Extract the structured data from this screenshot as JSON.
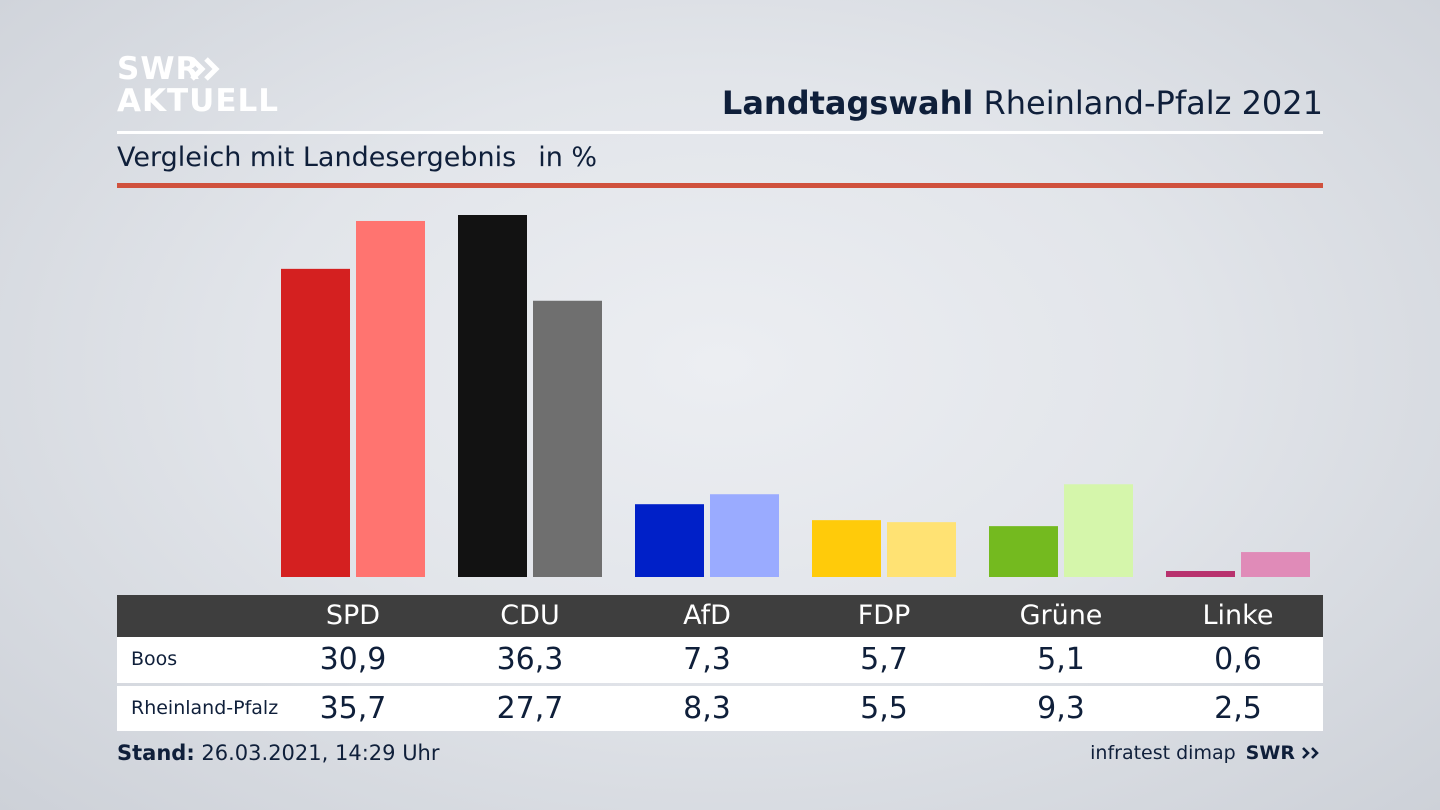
{
  "logo": {
    "line1": "SWR",
    "line2": "AKTUELL"
  },
  "header": {
    "title_bold": "Landtagswahl",
    "title_rest": "Rheinland-Pfalz 2021"
  },
  "subtitle": {
    "text": "Vergleich mit Landesergebnis",
    "unit": "in %"
  },
  "footer": {
    "stand_label": "Stand:",
    "stand_value": "26.03.2021, 14:29 Uhr",
    "source": "infratest dimap",
    "brand": "SWR"
  },
  "colors": {
    "title": "#0f1f3a",
    "rule_red": "#d0513d",
    "table_header": "#3e3e3e"
  },
  "chart_data": {
    "type": "bar",
    "categories": [
      "SPD",
      "CDU",
      "AfD",
      "FDP",
      "Grüne",
      "Linke"
    ],
    "series": [
      {
        "name": "Boos",
        "values": [
          30.9,
          36.3,
          7.3,
          5.7,
          5.1,
          0.6
        ],
        "colors": [
          "#d42020",
          "#121212",
          "#0020c8",
          "#ffcb0a",
          "#74ba1f",
          "#b8326e"
        ]
      },
      {
        "name": "Rheinland-Pfalz",
        "values": [
          35.7,
          27.7,
          8.3,
          5.5,
          9.3,
          2.5
        ],
        "colors": [
          "#ff7470",
          "#6f6f6f",
          "#9aabff",
          "#ffe273",
          "#d5f6ab",
          "#e08bb8"
        ]
      }
    ],
    "ylim": [
      0,
      36.3
    ],
    "table": {
      "header": [
        "SPD",
        "CDU",
        "AfD",
        "FDP",
        "Grüne",
        "Linke"
      ],
      "rows": [
        {
          "label": "Boos",
          "values": [
            "30,9",
            "36,3",
            "7,3",
            "5,7",
            "5,1",
            "0,6"
          ]
        },
        {
          "label": "Rheinland-Pfalz",
          "values": [
            "35,7",
            "27,7",
            "8,3",
            "5,5",
            "9,3",
            "2,5"
          ]
        }
      ]
    }
  }
}
